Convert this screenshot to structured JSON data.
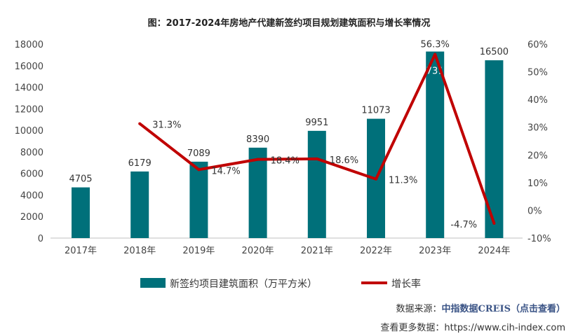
{
  "title": "图：2017-2024年房地产代建新签约项目规划建筑面积与增长率情况",
  "chart_data": {
    "type": "bar+line",
    "categories": [
      "2017年",
      "2018年",
      "2019年",
      "2020年",
      "2021年",
      "2022年",
      "2023年",
      "2024年"
    ],
    "series": [
      {
        "name": "新签约项目建筑面积（万平方米）",
        "type": "bar",
        "axis": "left",
        "color": "#00707a",
        "values": [
          4705,
          6179,
          7089,
          8390,
          9951,
          11073,
          17312,
          16500
        ],
        "labels": [
          "4705",
          "6179",
          "7089",
          "8390",
          "9951",
          "11073",
          "17312",
          "16500"
        ]
      },
      {
        "name": "增长率",
        "type": "line",
        "axis": "right",
        "color": "#c00000",
        "values": [
          null,
          31.3,
          14.7,
          18.4,
          18.6,
          11.3,
          56.3,
          -4.7
        ],
        "labels": [
          "",
          "31.3%",
          "14.7%",
          "18.4%",
          "18.6%",
          "11.3%",
          "56.3%",
          "-4.7%"
        ]
      }
    ],
    "yleft": {
      "lim": [
        0,
        18000
      ],
      "ticks": [
        "0",
        "2000",
        "4000",
        "6000",
        "8000",
        "10000",
        "12000",
        "14000",
        "16000",
        "18000"
      ]
    },
    "yright": {
      "lim": [
        -10,
        60
      ],
      "ticks": [
        "-10%",
        "0%",
        "10%",
        "20%",
        "30%",
        "40%",
        "50%",
        "60%"
      ]
    },
    "legend": "bottom",
    "grid": false
  },
  "watermark": "中指数据 CREIS",
  "source": {
    "label": "数据来源：",
    "name": "中指数据CREIS（点击查看）"
  },
  "more": "查看更多数据：https://www.cih-index.com"
}
